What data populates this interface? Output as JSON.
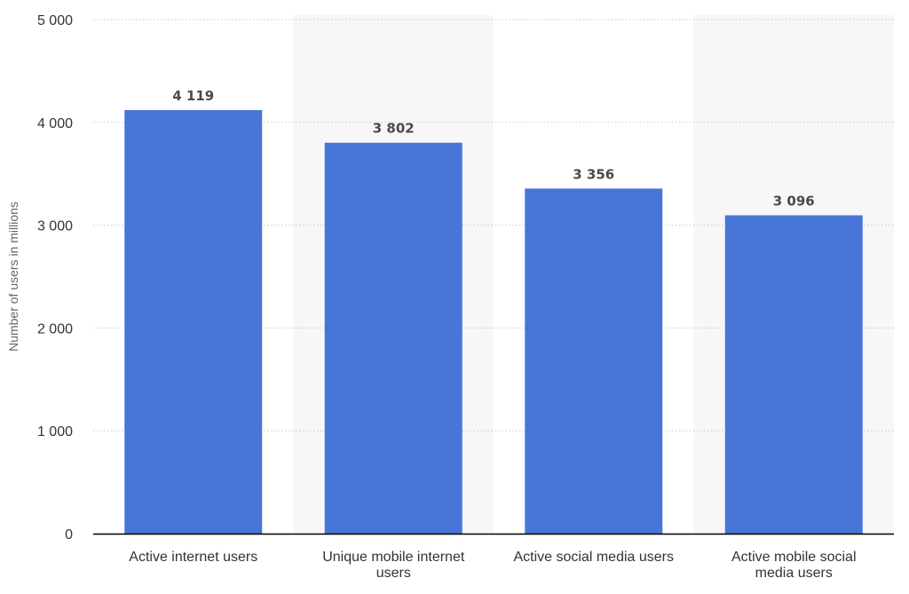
{
  "chart_data": {
    "type": "bar",
    "categories": [
      "Active internet users",
      "Unique mobile internet users",
      "Active social media users",
      "Active mobile social media users"
    ],
    "category_lines": [
      [
        "Active internet users"
      ],
      [
        "Unique mobile internet",
        "users"
      ],
      [
        "Active social media users"
      ],
      [
        "Active mobile social",
        "media users"
      ]
    ],
    "values": [
      4119,
      3802,
      3356,
      3096
    ],
    "value_labels": [
      "4 119",
      "3 802",
      "3 356",
      "3 096"
    ],
    "title": "",
    "xlabel": "",
    "ylabel": "Number of users in millions",
    "ylim": [
      0,
      5000
    ],
    "yticks": [
      0,
      1000,
      2000,
      3000,
      4000,
      5000
    ],
    "ytick_labels": [
      "0",
      "1 000",
      "2 000",
      "3 000",
      "4 000",
      "5 000"
    ],
    "grid": true,
    "alternating_band_color": "#f7f7f7",
    "bar_color": "#4876d7",
    "axis_color": "#000000",
    "grid_color": "#c8c8c8"
  }
}
